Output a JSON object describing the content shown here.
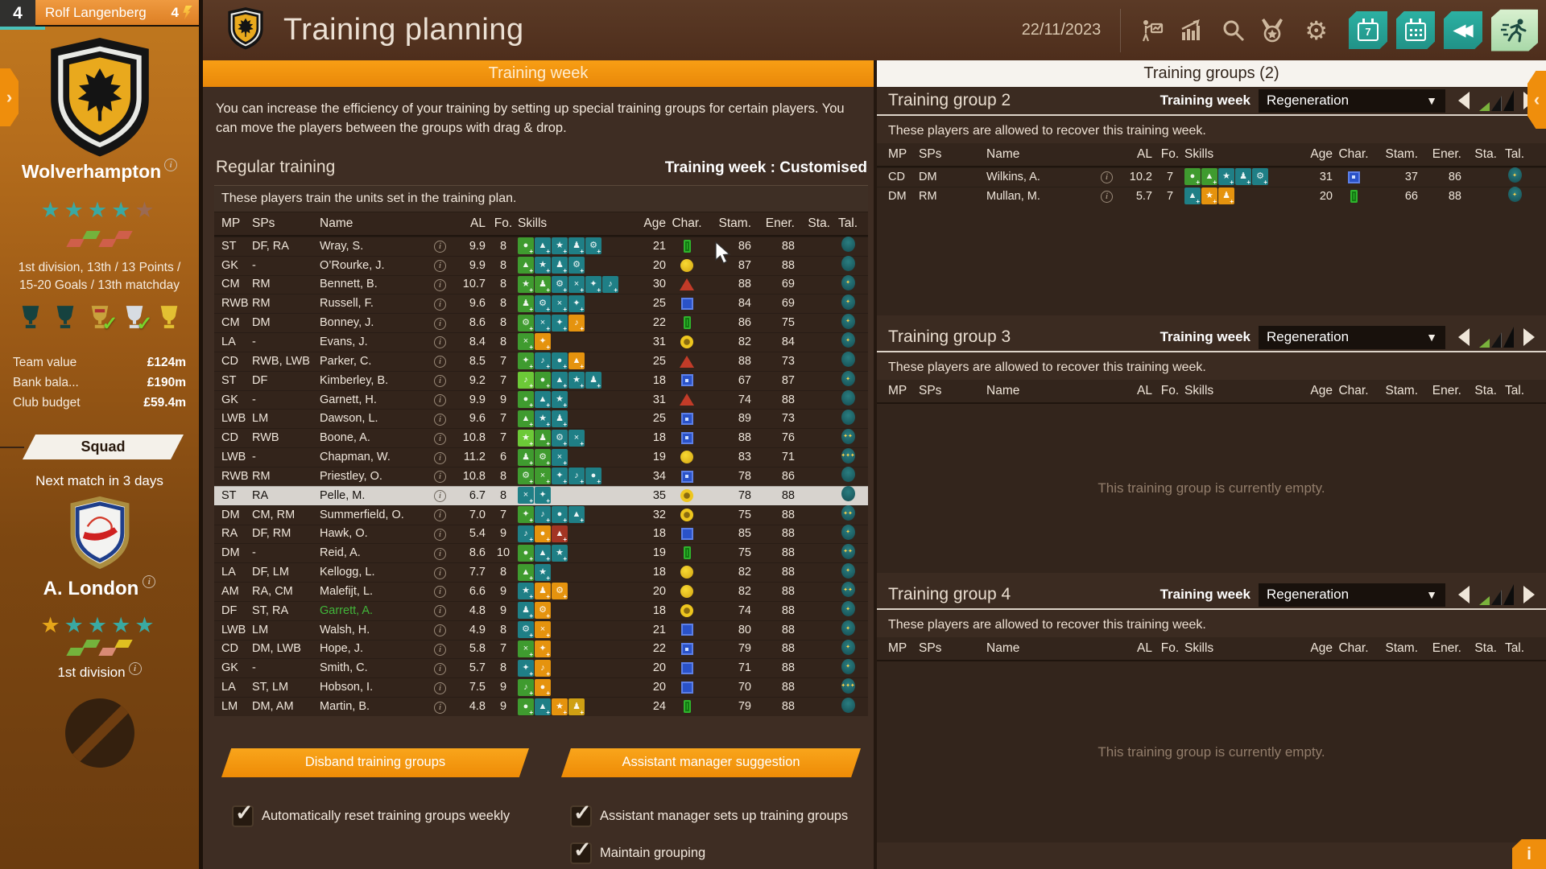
{
  "accent_colors": {
    "orange": "#ef8e0c",
    "teal_button": "#28a79b",
    "selected_row": "#d7d3ce",
    "highlight_green": "#41b53a"
  },
  "sidebar": {
    "manager_level": "4",
    "manager_name": "Rolf Langenberg",
    "manager_energy": "4",
    "club_name": "Wolverhampton",
    "club_stars": [
      "#3aa9a2",
      "#3aa9a2",
      "#3aa9a2",
      "#3aa9a2",
      "#9b6a52"
    ],
    "club_form": [
      "#cf5f4a",
      "#74b33c",
      "#cf5f4a",
      "#cf5f4a"
    ],
    "league_line": "1st division, 13th / 13 Points / 15-20 Goals / 13th matchday",
    "trophies": [
      {
        "type": "dark",
        "checked": false
      },
      {
        "type": "dark",
        "checked": false
      },
      {
        "type": "ornate",
        "checked": true
      },
      {
        "type": "silver",
        "checked": true
      },
      {
        "type": "gold",
        "checked": false
      }
    ],
    "stats": [
      {
        "label": "Team value",
        "value": "£124m"
      },
      {
        "label": "Bank bala...",
        "value": "£190m"
      },
      {
        "label": "Club budget",
        "value": "£59.4m"
      }
    ],
    "squad_button": "Squad",
    "next_match": "Next match in 3 days",
    "opponent_name": "A. London",
    "opponent_stars": [
      "#e7a619",
      "#3aa9a2",
      "#3aa9a2",
      "#3aa9a2",
      "#3aa9a2"
    ],
    "opponent_form": [
      "#74b33c",
      "#74b33c",
      "#d98a74",
      "#e0c020"
    ],
    "opponent_league": "1st division"
  },
  "header": {
    "title": "Training planning",
    "date": "22/11/2023"
  },
  "main": {
    "tab": "Training week",
    "description": "You can increase the efficiency of your training by setting up special training groups for certain players. You can move the players between the groups with drag & drop.",
    "section_title": "Regular training",
    "week_status": "Training week : Customised",
    "table_note": "These players train the units set in the training plan.",
    "columns": [
      "MP",
      "SPs",
      "Name",
      "AL",
      "Fo.",
      "Skills",
      "Age",
      "Char.",
      "Stam.",
      "Ener.",
      "Sta.",
      "Tal."
    ],
    "players": [
      {
        "mp": "ST",
        "sps": "DF, RA",
        "name": "Wray, S.",
        "al": "9.9",
        "fo": "8",
        "skills": "gtttt",
        "age": "21",
        "char": "green-bar",
        "stam": "86",
        "ener": "88",
        "tal": 0
      },
      {
        "mp": "GK",
        "sps": "-",
        "name": "O’Rourke, J.",
        "al": "9.9",
        "fo": "8",
        "skills": "gttt",
        "age": "20",
        "char": "yellow",
        "stam": "87",
        "ener": "88",
        "tal": 0
      },
      {
        "mp": "CM",
        "sps": "RM",
        "name": "Bennett, B.",
        "al": "10.7",
        "fo": "8",
        "skills": "ggtttt",
        "age": "30",
        "char": "red-tri",
        "stam": "88",
        "ener": "69",
        "tal": 1
      },
      {
        "mp": "RWB",
        "sps": "RM",
        "name": "Russell, F.",
        "al": "9.6",
        "fo": "8",
        "skills": "gttt",
        "age": "25",
        "char": "blue",
        "stam": "84",
        "ener": "69",
        "tal": 1
      },
      {
        "mp": "CM",
        "sps": "DM",
        "name": "Bonney, J.",
        "al": "8.6",
        "fo": "8",
        "skills": "gtto",
        "age": "22",
        "char": "green-bar",
        "stam": "86",
        "ener": "75",
        "tal": 1
      },
      {
        "mp": "LA",
        "sps": "-",
        "name": "Evans, J.",
        "al": "8.4",
        "fo": "8",
        "skills": "go",
        "age": "31",
        "char": "yellow-ring",
        "stam": "82",
        "ener": "84",
        "tal": 1
      },
      {
        "mp": "CD",
        "sps": "RWB, LWB",
        "name": "Parker, C.",
        "al": "8.5",
        "fo": "7",
        "skills": "gtto",
        "age": "25",
        "char": "red-tri",
        "stam": "88",
        "ener": "73",
        "tal": 0
      },
      {
        "mp": "ST",
        "sps": "DF",
        "name": "Kimberley, B.",
        "al": "9.2",
        "fo": "7",
        "skills": "Ggttt",
        "age": "18",
        "char": "blue-dot",
        "stam": "67",
        "ener": "87",
        "tal": 1
      },
      {
        "mp": "GK",
        "sps": "-",
        "name": "Garnett, H.",
        "al": "9.9",
        "fo": "9",
        "skills": "gtt",
        "age": "31",
        "char": "red-tri",
        "stam": "74",
        "ener": "88",
        "tal": 0
      },
      {
        "mp": "LWB",
        "sps": "LM",
        "name": "Dawson, L.",
        "al": "9.6",
        "fo": "7",
        "skills": "gtt",
        "age": "25",
        "char": "blue-dot",
        "stam": "89",
        "ener": "73",
        "tal": 0
      },
      {
        "mp": "CD",
        "sps": "RWB",
        "name": "Boone, A.",
        "al": "10.8",
        "fo": "7",
        "skills": "Ggtt",
        "age": "18",
        "char": "blue-dot",
        "stam": "88",
        "ener": "76",
        "tal": 2
      },
      {
        "mp": "LWB",
        "sps": "-",
        "name": "Chapman, W.",
        "al": "11.2",
        "fo": "6",
        "skills": "ggt",
        "age": "19",
        "char": "yellow",
        "stam": "83",
        "ener": "71",
        "tal": 3
      },
      {
        "mp": "RWB",
        "sps": "RM",
        "name": "Priestley, O.",
        "al": "10.8",
        "fo": "8",
        "skills": "ggttt",
        "age": "34",
        "char": "blue-dot",
        "stam": "78",
        "ener": "86",
        "tal": 0
      },
      {
        "mp": "ST",
        "sps": "RA",
        "name": "Pelle, M.",
        "al": "6.7",
        "fo": "8",
        "skills": "tt",
        "age": "35",
        "char": "yellow-ring",
        "stam": "78",
        "ener": "88",
        "tal": 0,
        "selected": true
      },
      {
        "mp": "DM",
        "sps": "CM, RM",
        "name": "Summerfield, O.",
        "al": "7.0",
        "fo": "7",
        "skills": "gttt",
        "age": "32",
        "char": "yellow-ring",
        "stam": "75",
        "ener": "88",
        "tal": 2
      },
      {
        "mp": "RA",
        "sps": "DF, RM",
        "name": "Hawk, O.",
        "al": "5.4",
        "fo": "9",
        "skills": "tor",
        "age": "18",
        "char": "blue",
        "stam": "85",
        "ener": "88",
        "tal": 1
      },
      {
        "mp": "DM",
        "sps": "-",
        "name": "Reid, A.",
        "al": "8.6",
        "fo": "10",
        "skills": "gtt",
        "age": "19",
        "char": "green-bar",
        "stam": "75",
        "ener": "88",
        "tal": 2
      },
      {
        "mp": "LA",
        "sps": "DF, LM",
        "name": "Kellogg, L.",
        "al": "7.7",
        "fo": "8",
        "skills": "gt",
        "age": "18",
        "char": "yellow",
        "stam": "82",
        "ener": "88",
        "tal": 1
      },
      {
        "mp": "AM",
        "sps": "RA, CM",
        "name": "Malefijt, L.",
        "al": "6.6",
        "fo": "9",
        "skills": "too",
        "age": "20",
        "char": "yellow",
        "stam": "82",
        "ener": "88",
        "tal": 2
      },
      {
        "mp": "DF",
        "sps": "ST, RA",
        "name": "Garrett, A.",
        "al": "4.8",
        "fo": "9",
        "skills": "to",
        "age": "18",
        "char": "yellow-ring",
        "stam": "74",
        "ener": "88",
        "tal": 1,
        "name_green": true
      },
      {
        "mp": "LWB",
        "sps": "LM",
        "name": "Walsh, H.",
        "al": "4.9",
        "fo": "8",
        "skills": "to",
        "age": "21",
        "char": "blue",
        "stam": "80",
        "ener": "88",
        "tal": 1
      },
      {
        "mp": "CD",
        "sps": "DM, LWB",
        "name": "Hope, J.",
        "al": "5.8",
        "fo": "7",
        "skills": "go",
        "age": "22",
        "char": "blue-dot",
        "stam": "79",
        "ener": "88",
        "tal": 1
      },
      {
        "mp": "GK",
        "sps": "-",
        "name": "Smith, C.",
        "al": "5.7",
        "fo": "8",
        "skills": "to",
        "age": "20",
        "char": "blue",
        "stam": "71",
        "ener": "88",
        "tal": 1
      },
      {
        "mp": "LA",
        "sps": "ST, LM",
        "name": "Hobson, I.",
        "al": "7.5",
        "fo": "9",
        "skills": "go",
        "age": "20",
        "char": "blue",
        "stam": "70",
        "ener": "88",
        "tal": 3
      },
      {
        "mp": "LM",
        "sps": "DM, AM",
        "name": "Martin, B.",
        "al": "4.8",
        "fo": "9",
        "skills": "gtoy",
        "age": "24",
        "char": "green-bar",
        "stam": "79",
        "ener": "88",
        "tal": 0
      }
    ],
    "buttons": {
      "disband": "Disband training groups",
      "suggest": "Assistant manager suggestion"
    },
    "checkboxes": [
      {
        "label": "Automatically reset training groups weekly",
        "checked": true
      },
      {
        "label": "Assistant manager sets up training groups",
        "checked": true
      },
      {
        "label": "Maintain grouping",
        "checked": true
      }
    ]
  },
  "groups": {
    "tab": "Training groups (2)",
    "week_label": "Training week",
    "empty_text": "This training group is currently empty.",
    "list": [
      {
        "title": "Training group 2",
        "week_value": "Regeneration",
        "desc": "These players are allowed to recover this training week.",
        "players": [
          {
            "mp": "CD",
            "sps": "DM",
            "name": "Wilkins, A.",
            "al": "10.2",
            "fo": "7",
            "skills": "ggttt",
            "age": "31",
            "char": "blue-dot",
            "stam": "37",
            "ener": "86",
            "tal": 1
          },
          {
            "mp": "DM",
            "sps": "RM",
            "name": "Mullan, M.",
            "al": "5.7",
            "fo": "7",
            "skills": "too",
            "age": "20",
            "char": "green-bar",
            "stam": "66",
            "ener": "88",
            "tal": 1
          }
        ]
      },
      {
        "title": "Training group 3",
        "week_value": "Regeneration",
        "desc": "These players are allowed to recover this training week.",
        "players": []
      },
      {
        "title": "Training group 4",
        "week_value": "Regeneration",
        "desc": "These players are allowed to recover this training week.",
        "players": []
      }
    ]
  },
  "corner_info_label": "i",
  "skill_tile_colors": {
    "g": "#3f9b2f",
    "G": "#6cc937",
    "t": "#1f7f86",
    "o": "#e5930e",
    "r": "#a33524",
    "y": "#cfa013"
  }
}
